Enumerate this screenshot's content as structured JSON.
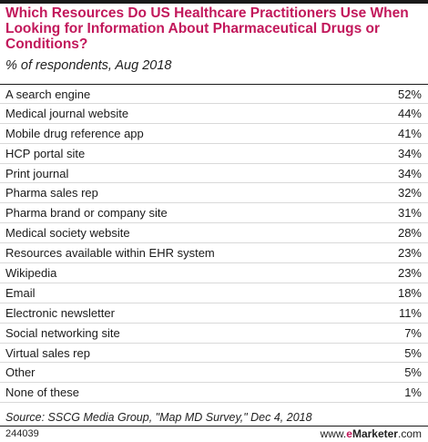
{
  "chart_data": {
    "type": "table",
    "title": "Which Resources Do US Healthcare Practitioners Use When Looking for Information About Pharmaceutical Drugs or Conditions?",
    "subtitle": "% of respondents, Aug 2018",
    "categories": [
      "A search engine",
      "Medical journal website",
      "Mobile drug reference app",
      "HCP portal site",
      "Print journal",
      "Pharma sales rep",
      "Pharma brand or company site",
      "Medical society website",
      "Resources available within EHR system",
      "Wikipedia",
      "Email",
      "Electronic newsletter",
      "Social networking site",
      "Virtual sales rep",
      "Other",
      "None of these"
    ],
    "values": [
      52,
      44,
      41,
      34,
      34,
      32,
      31,
      28,
      23,
      23,
      18,
      11,
      7,
      5,
      5,
      1
    ],
    "unit": "%"
  },
  "footer": {
    "source": "Source: SSCG Media Group, \"Map MD Survey,\" Dec 4, 2018",
    "chart_id": "244039",
    "brand_prefix": "www.",
    "brand_accent": "e",
    "brand_name": "Marketer",
    "brand_suffix": ".com"
  }
}
